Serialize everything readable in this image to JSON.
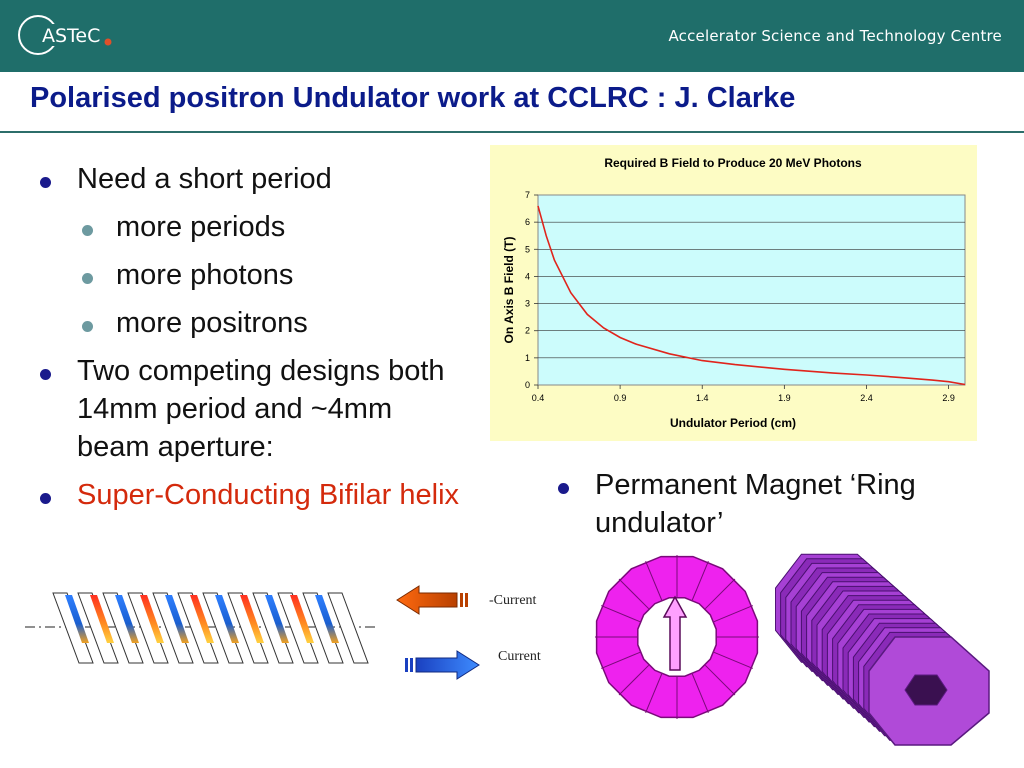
{
  "header": {
    "logo_text": "ASTeC",
    "org_name": "Accelerator Science and Technology Centre"
  },
  "slide": {
    "title": "Polarised positron Undulator work at CCLRC : J. Clarke"
  },
  "bullets": [
    {
      "level": 1,
      "text": "Need a short period"
    },
    {
      "level": 2,
      "text": "more periods"
    },
    {
      "level": 2,
      "text": "more photons"
    },
    {
      "level": 2,
      "text": "more positrons"
    },
    {
      "level": 1,
      "text": "Two competing designs both 14mm period and ~4mm beam aperture:"
    },
    {
      "level": 1,
      "text": "Super-Conducting Bifilar helix",
      "color": "#d42a0c"
    }
  ],
  "right_bullet": "Permanent Magnet ‘Ring undulator’",
  "helix_labels": {
    "neg_current": "-Current",
    "current": "Current"
  },
  "colors": {
    "header_bg": "#1f6e6a",
    "title": "#0b1b8a",
    "highlight": "#d42a0c",
    "chart_bg": "#fdfcc4",
    "plot_bg": "#ccfcfc",
    "curve": "#e0241c",
    "magnet": "#ee22ee"
  },
  "chart_data": {
    "type": "line",
    "title": "Required B Field to Produce 20 MeV Photons",
    "xlabel": "Undulator Period (cm)",
    "ylabel": "On Axis B Field (T)",
    "xlim": [
      0.4,
      3.0
    ],
    "ylim": [
      0,
      7
    ],
    "x_ticks": [
      "0.4",
      "0.9",
      "1.4",
      "1.9",
      "2.4",
      "2.9"
    ],
    "y_ticks": [
      "0",
      "1",
      "2",
      "3",
      "4",
      "5",
      "6",
      "7"
    ],
    "grid": "horizontal",
    "series": [
      {
        "x": [
          0.4,
          0.45,
          0.5,
          0.6,
          0.7,
          0.8,
          0.9,
          1.0,
          1.2,
          1.4,
          1.6,
          1.9,
          2.2,
          2.4,
          2.6,
          2.8,
          2.9,
          3.0
        ],
        "values": [
          6.6,
          5.5,
          4.6,
          3.4,
          2.6,
          2.1,
          1.75,
          1.5,
          1.15,
          0.9,
          0.75,
          0.58,
          0.44,
          0.37,
          0.28,
          0.18,
          0.12,
          0.02
        ]
      }
    ]
  }
}
